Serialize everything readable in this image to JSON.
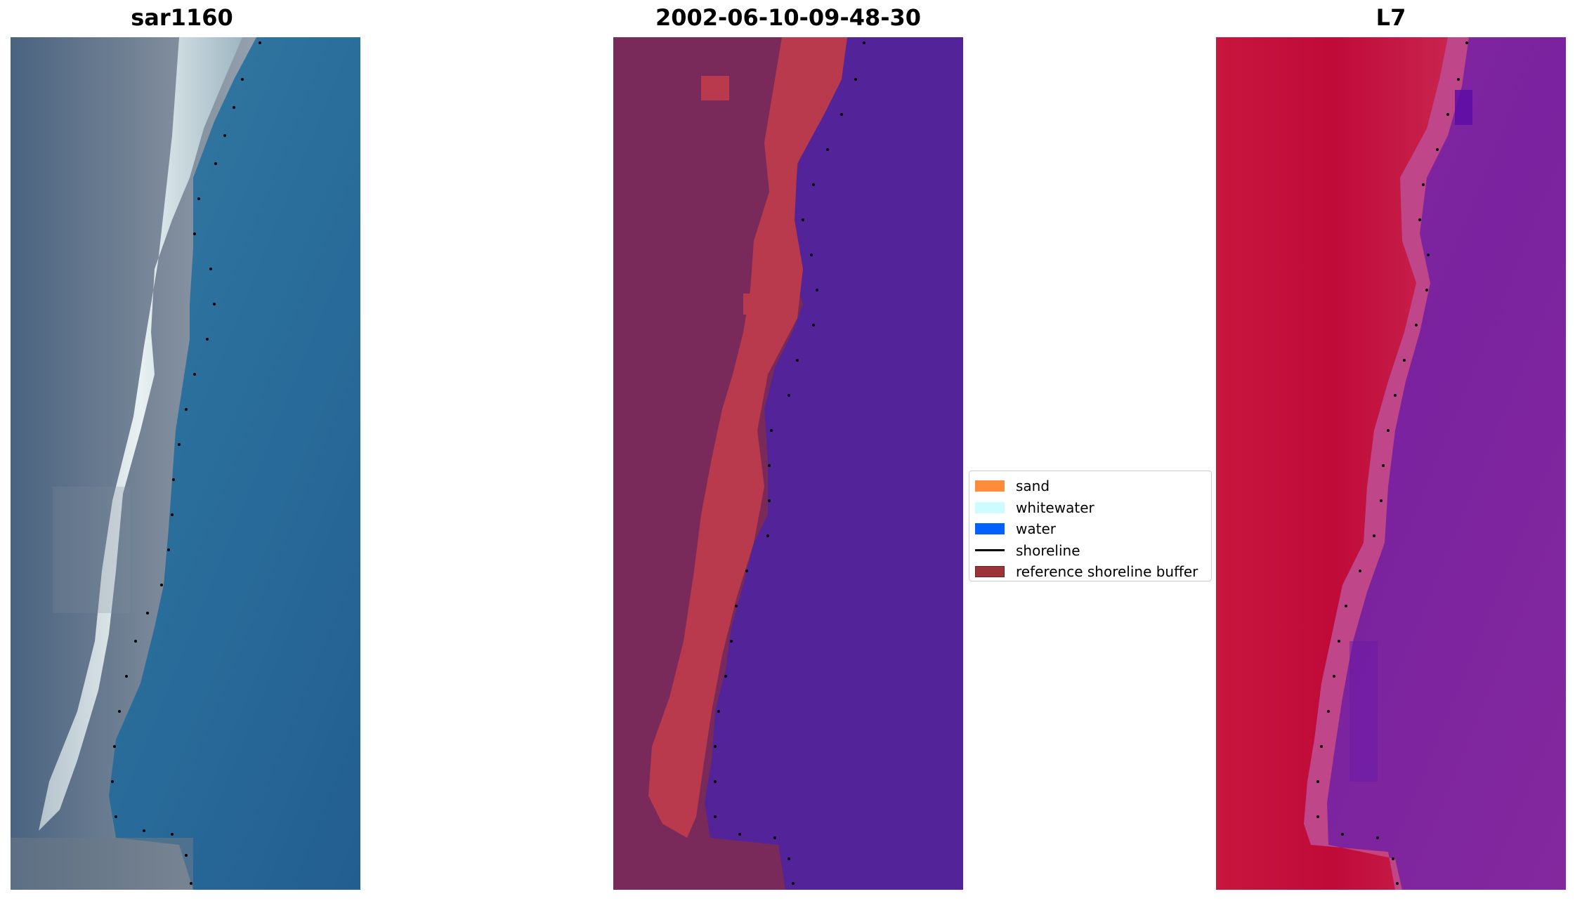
{
  "titles": {
    "left": "sar1160",
    "middle": "2002-06-10-09-48-30",
    "right": "L7"
  },
  "legend": [
    {
      "label": "sand",
      "color": "#ff8c3a",
      "kind": "patch"
    },
    {
      "label": "whitewater",
      "color": "#ccfcff",
      "kind": "patch"
    },
    {
      "label": "water",
      "color": "#0061ff",
      "kind": "patch"
    },
    {
      "label": "shoreline",
      "color": "#000000",
      "kind": "line"
    },
    {
      "label": "reference shoreline buffer",
      "color": "#9b3338",
      "kind": "patch",
      "edge": "#6b2024"
    }
  ],
  "colors": {
    "rgb_land": "#5f7182",
    "rgb_beach": "#e9f3f3",
    "rgb_water": "#2a6f9c",
    "class_land": "#7a2a5a",
    "class_buffer": "#b83a4c",
    "class_water": "#53239a",
    "ndwi_land": "#c00a38",
    "ndwi_edge": "#c64a86",
    "ndwi_water": "#7e26a0",
    "shoreline": "#000000"
  }
}
